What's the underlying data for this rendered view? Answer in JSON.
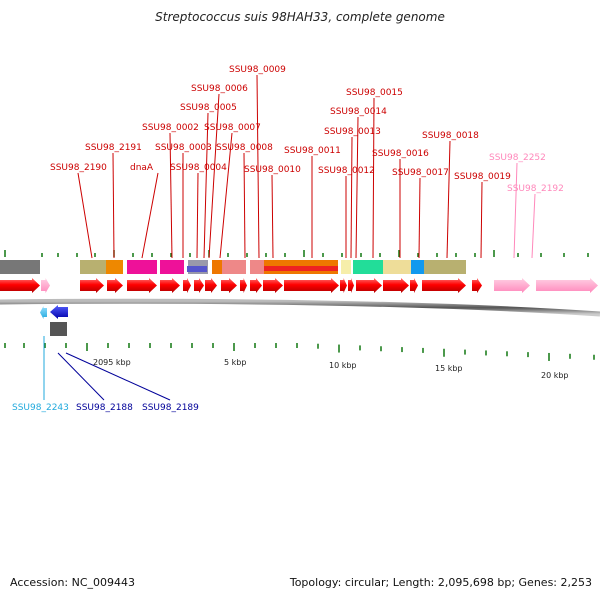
{
  "title": "Streptococcus suis 98HAH33, complete genome",
  "footer": {
    "accession": "Accession: NC_009443",
    "summary": "Topology: circular; Length: 2,095,698 bp; Genes: 2,253"
  },
  "scale_labels": [
    "2095 kbp",
    "5 kbp",
    "10 kbp",
    "15 kbp",
    "20 kbp"
  ],
  "gene_labels_top": [
    "SSU98_0009",
    "SSU98_0006",
    "SSU98_0005",
    "SSU98_0002",
    "SSU98_0007",
    "SSU98_2191",
    "SSU98_0003",
    "SSU98_0008",
    "SSU98_2190",
    "dnaA",
    "SSU98_0004",
    "SSU98_0010",
    "SSU98_0015",
    "SSU98_0014",
    "SSU98_0013",
    "SSU98_0018",
    "SSU98_0011",
    "SSU98_0016",
    "SSU98_0012",
    "SSU98_0017",
    "SSU98_0019",
    "SSU98_2252",
    "SSU98_2192"
  ],
  "gene_labels_bottom": [
    "SSU98_2243",
    "SSU98_2188",
    "SSU98_2189"
  ],
  "colors": {
    "forward_gene": "#ff0000",
    "pseudo_gene": "#ff99cc",
    "reverse_gene": "#0000ee",
    "reverse_light": "#33bbff",
    "label_red": "#cc0000",
    "label_pink": "#ff88bb",
    "label_blue": "#000099",
    "label_cyan": "#22aadd",
    "backbone": "#666666",
    "tick": "#117711"
  }
}
